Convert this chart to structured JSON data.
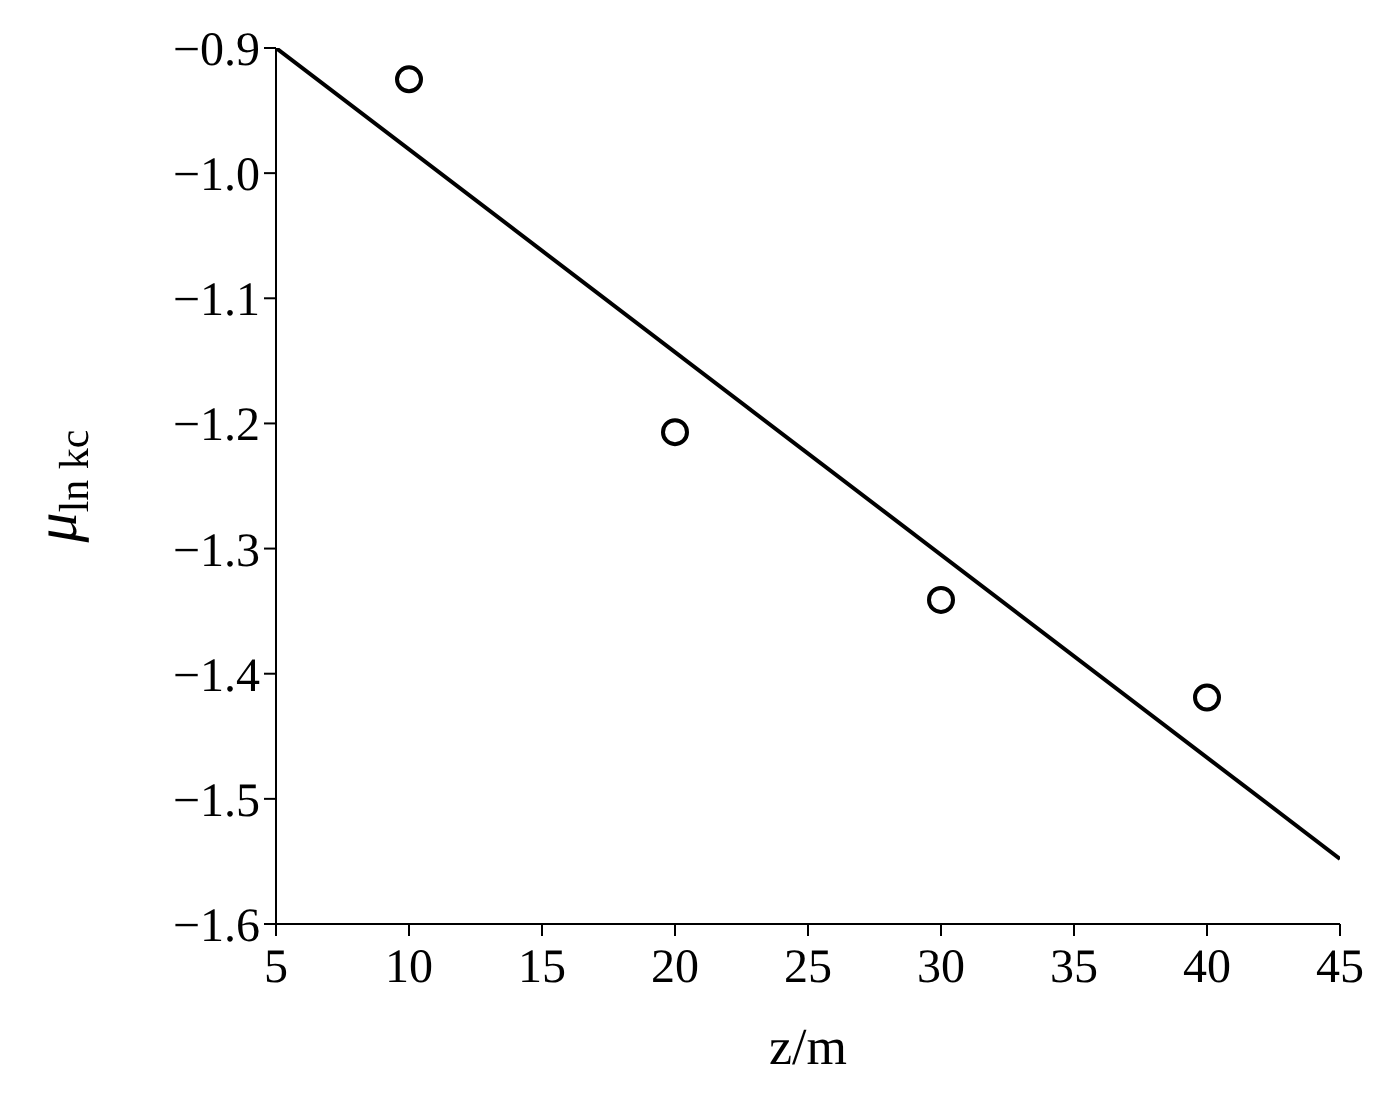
{
  "chart_data": {
    "type": "scatter",
    "xlabel": "z/m",
    "ylabel": "μ$_{ln kc}$",
    "xlim": [
      5,
      45
    ],
    "ylim": [
      -1.6,
      -0.9
    ],
    "xticks": [
      5,
      10,
      15,
      20,
      25,
      30,
      35,
      40,
      45
    ],
    "yticks": [
      {
        "value": -1.6,
        "label": "−1.6"
      },
      {
        "value": -1.5,
        "label": "−1.5"
      },
      {
        "value": -1.4,
        "label": "−1.4"
      },
      {
        "value": -1.3,
        "label": "−1.3"
      },
      {
        "value": -1.2,
        "label": "−1.2"
      },
      {
        "value": -1.1,
        "label": "−1.1"
      },
      {
        "value": -1.0,
        "label": "−1.0"
      },
      {
        "value": -0.9,
        "label": "−0.9"
      }
    ],
    "grid": false,
    "legend": false,
    "series": [
      {
        "color": "#000000",
        "marker": "circle",
        "x": [
          10,
          20,
          30,
          40
        ],
        "values": [
          -0.925,
          -1.207,
          -1.341,
          -1.419
        ]
      },
      {
        "type": "line",
        "color": "#000000",
        "marker": "none",
        "line_style": "solid",
        "x": [
          5,
          45
        ],
        "values": [
          -0.9,
          -1.548
        ]
      }
    ]
  }
}
